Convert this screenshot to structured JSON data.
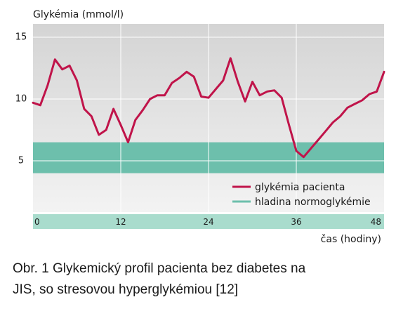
{
  "chart_data": {
    "type": "line",
    "ylabel": "Glykémia (mmol/l)",
    "xlabel": "čas (hodiny)",
    "xlim": [
      0,
      48
    ],
    "ylim": [
      0,
      16
    ],
    "y_ticks": [
      "15",
      "10",
      "5"
    ],
    "x_ticks": [
      "0",
      "12",
      "24",
      "36",
      "48"
    ],
    "grid": true,
    "legend_position": "bottom-right",
    "band": {
      "name": "hladina normoglykémie",
      "range": [
        4,
        6.5
      ],
      "color": "#6dbfac"
    },
    "series": [
      {
        "name": "glykémia pacienta",
        "color": "#c0144a",
        "x": [
          0,
          1,
          2,
          3,
          4,
          5,
          6,
          7,
          8,
          9,
          10,
          11,
          12,
          13,
          14,
          15,
          16,
          17,
          18,
          19,
          20,
          21,
          22,
          23,
          24,
          25,
          26,
          27,
          28,
          29,
          30,
          31,
          32,
          33,
          34,
          35,
          36,
          37,
          38,
          39,
          40,
          41,
          42,
          43,
          44,
          45,
          46,
          47,
          48
        ],
        "y": [
          9.7,
          9.5,
          11.1,
          13.2,
          12.4,
          12.7,
          11.5,
          9.2,
          8.6,
          7.1,
          7.5,
          9.2,
          7.9,
          6.5,
          8.3,
          9.1,
          10.0,
          10.3,
          10.3,
          11.3,
          11.7,
          12.2,
          11.8,
          10.2,
          10.1,
          10.8,
          11.5,
          13.3,
          11.4,
          9.8,
          11.4,
          10.3,
          10.6,
          10.7,
          10.1,
          7.9,
          5.8,
          5.3,
          6.0,
          6.7,
          7.4,
          8.1,
          8.6,
          9.3,
          9.6,
          9.9,
          10.4,
          10.6,
          12.2
        ]
      }
    ]
  },
  "caption": {
    "line1": "Obr. 1 Glykemický profil pacienta bez diabetes na",
    "line2": "JIS, so stresovou hyperglykémiou [12]"
  }
}
